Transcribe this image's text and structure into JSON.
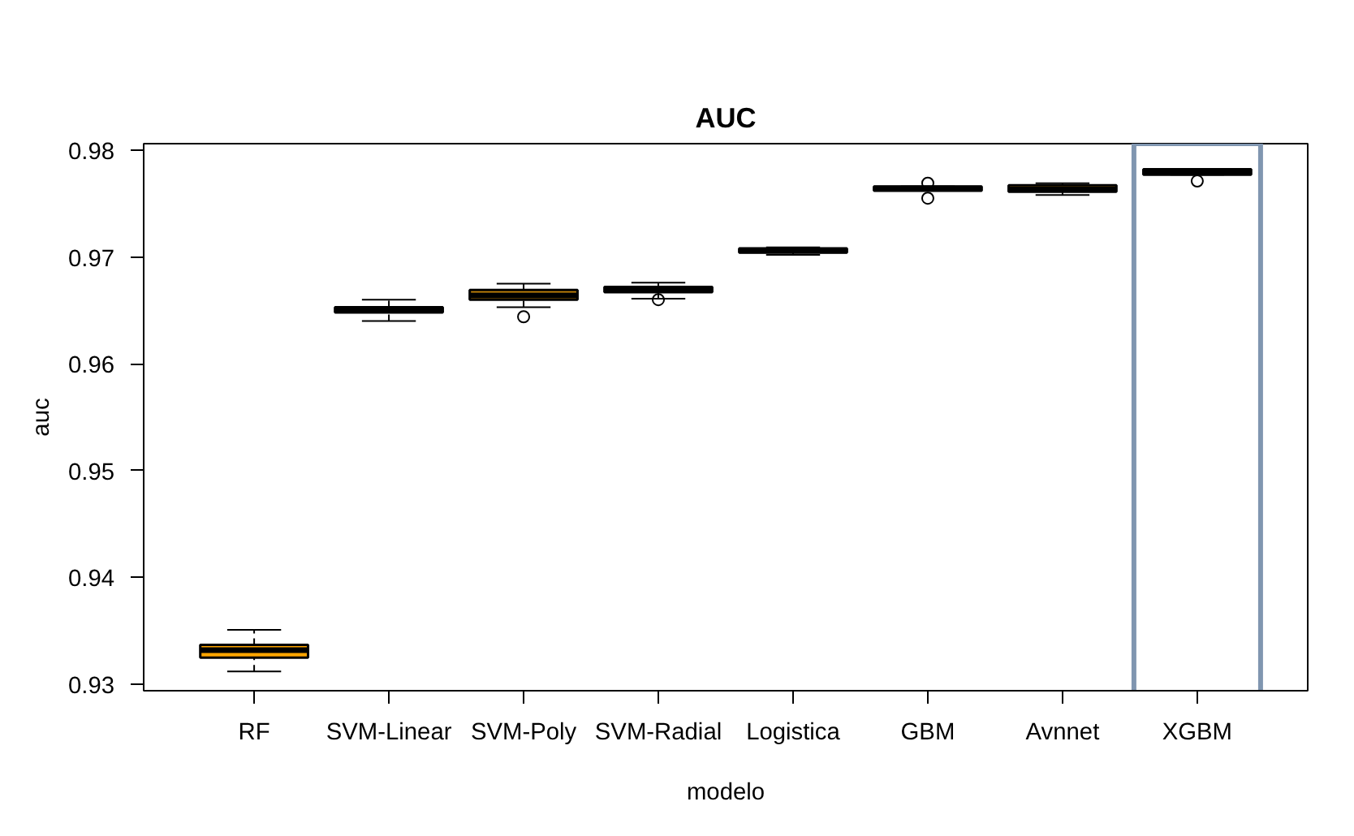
{
  "chart_data": {
    "type": "box",
    "title": "AUC",
    "xlabel": "modelo",
    "ylabel": "auc",
    "categories": [
      "RF",
      "SVM-Linear",
      "SVM-Poly",
      "SVM-Radial",
      "Logistica",
      "GBM",
      "Avnnet",
      "XGBM"
    ],
    "colors": [
      "#ffa500",
      "#ffa500",
      "#c8860a",
      "#ffa500",
      "#ffa500",
      "#ffa500",
      "#c8860a",
      "#ffa500"
    ],
    "boxes": [
      {
        "low": 0.9312,
        "q1": 0.9325,
        "median": 0.9332,
        "q3": 0.9337,
        "high": 0.9351
      },
      {
        "low": 0.964,
        "q1": 0.9648,
        "median": 0.9651,
        "q3": 0.9653,
        "high": 0.966
      },
      {
        "low": 0.9653,
        "q1": 0.966,
        "median": 0.9664,
        "q3": 0.9669,
        "high": 0.9675,
        "outliers": [
          0.9644
        ]
      },
      {
        "low": 0.9661,
        "q1": 0.9667,
        "median": 0.9669,
        "q3": 0.9672,
        "high": 0.9676,
        "outliers": [
          0.966
        ]
      },
      {
        "low": 0.9702,
        "q1": 0.9704,
        "median": 0.9706,
        "q3": 0.9708,
        "high": 0.9709
      },
      {
        "low": 0.9762,
        "q1": 0.9762,
        "median": 0.9764,
        "q3": 0.9766,
        "high": 0.9766,
        "outliers": [
          0.9769,
          0.9755
        ]
      },
      {
        "low": 0.9758,
        "q1": 0.9761,
        "median": 0.9763,
        "q3": 0.9767,
        "high": 0.9769
      },
      {
        "low": 0.9777,
        "q1": 0.9777,
        "median": 0.978,
        "q3": 0.9782,
        "high": 0.9782,
        "outliers": [
          0.9771
        ]
      }
    ],
    "ylim": [
      0.9294,
      0.9806
    ],
    "yticks": [
      0.93,
      0.94,
      0.95,
      0.96,
      0.97,
      0.98
    ],
    "grid": false
  }
}
